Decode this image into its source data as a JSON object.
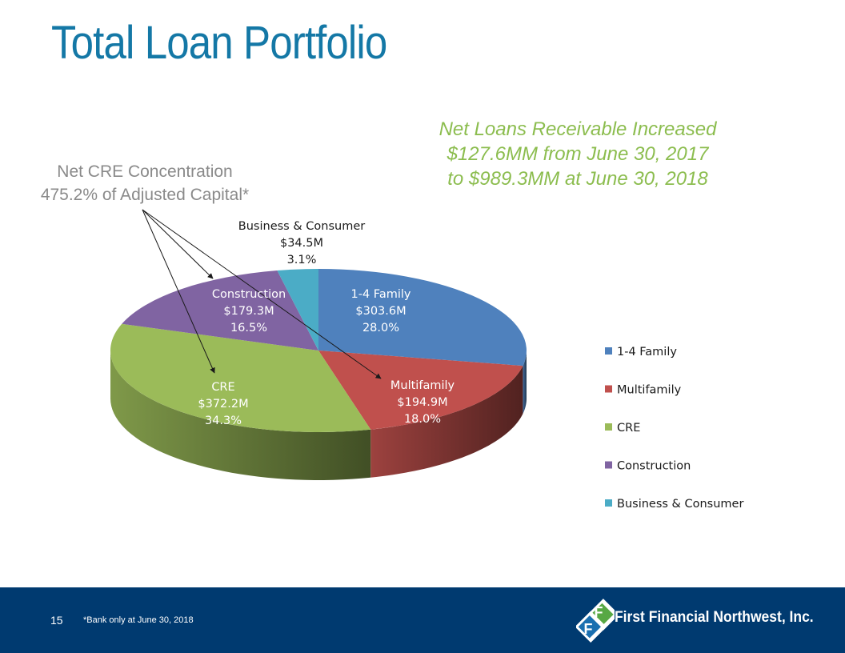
{
  "title": "Total Loan Portfolio",
  "callout_right": {
    "lines": [
      "Net Loans Receivable Increased",
      "$127.6MM from June 30, 2017",
      "to $989.3MM at June 30, 2018"
    ],
    "color": "#8cbd4f"
  },
  "callout_left": {
    "lines": [
      "Net CRE Concentration",
      "475.2% of Adjusted Capital*"
    ]
  },
  "chart_data": {
    "type": "pie",
    "style": "3d",
    "values_unit": "$M",
    "slices": [
      {
        "name": "1-4 Family",
        "value": 303.6,
        "value_label": "$303.6M",
        "percent": 28.0,
        "percent_label": "28.0%",
        "color": "#4f81bd"
      },
      {
        "name": "Multifamily",
        "value": 194.9,
        "value_label": "$194.9M",
        "percent": 18.0,
        "percent_label": "18.0%",
        "color": "#c0504d"
      },
      {
        "name": "CRE",
        "value": 372.2,
        "value_label": "$372.2M",
        "percent": 34.3,
        "percent_label": "34.3%",
        "color": "#9bbb59"
      },
      {
        "name": "Construction",
        "value": 179.3,
        "value_label": "$179.3M",
        "percent": 16.5,
        "percent_label": "16.5%",
        "color": "#8064a2"
      },
      {
        "name": "Business & Consumer",
        "value": 34.5,
        "value_label": "$34.5M",
        "percent": 3.1,
        "percent_label": "3.1%",
        "color": "#4bacc6"
      }
    ],
    "legend": {
      "placement": "right",
      "entries": [
        "1-4 Family",
        "Multifamily",
        "CRE",
        "Construction",
        "Business & Consumer"
      ]
    }
  },
  "footer": {
    "page_number": "15",
    "footnote": "*Bank only at June 30, 2018",
    "brand_name": "First Financial Northwest, Inc.",
    "background": "#003a70"
  }
}
